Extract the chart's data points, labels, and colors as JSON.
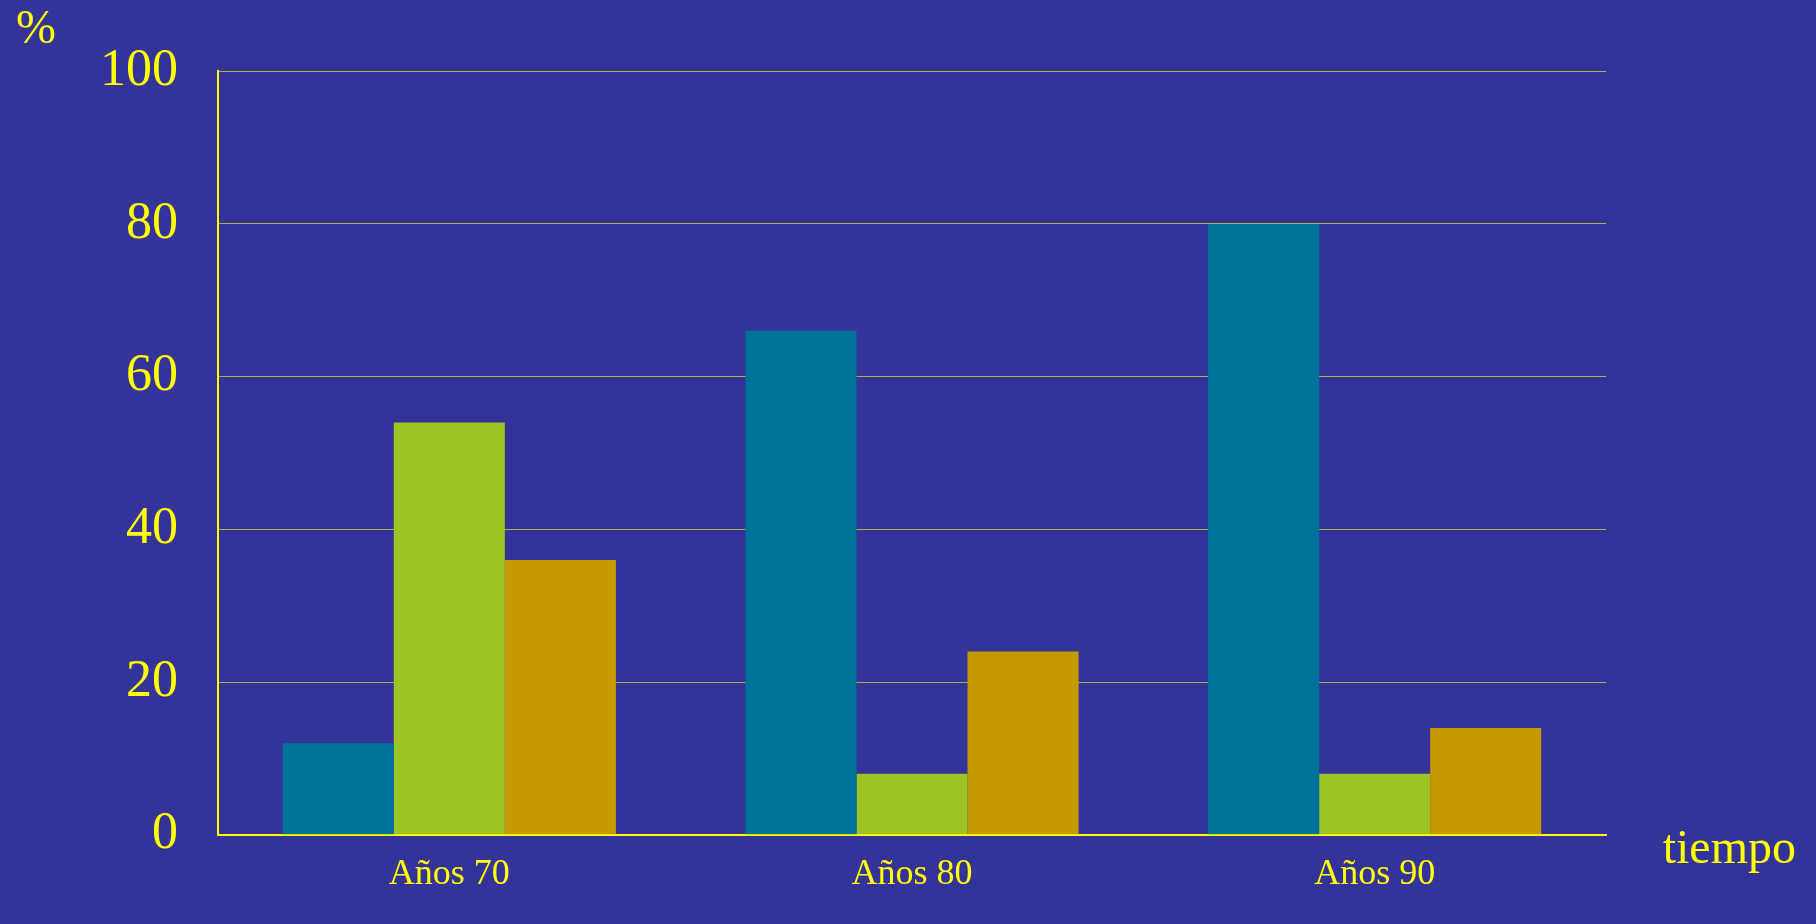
{
  "chart_data": {
    "type": "bar",
    "xlabel": "tiempo",
    "ylabel": "%",
    "categories": [
      "Años 70",
      "Años 80",
      "Años 90"
    ],
    "series": [
      {
        "color": "#00739b",
        "values": [
          12,
          66,
          80
        ]
      },
      {
        "color": "#9dc424",
        "values": [
          54,
          8,
          8
        ]
      },
      {
        "color": "#c79a00",
        "values": [
          36,
          24,
          14
        ]
      }
    ],
    "ylim": [
      0,
      100
    ],
    "yticks": [
      0,
      20,
      40,
      60,
      80,
      100
    ],
    "grid": "y",
    "legend": false
  }
}
